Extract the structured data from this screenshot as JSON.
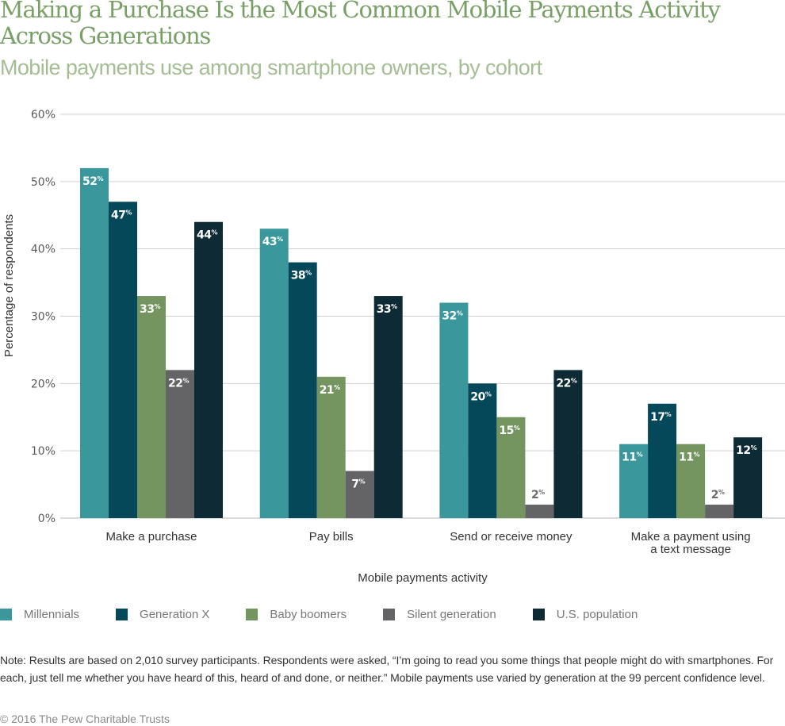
{
  "header": {
    "title": "Making a Purchase Is the Most Common Mobile Payments Activity Across Generations",
    "subtitle": "Mobile payments use among smartphone owners, by cohort"
  },
  "chart_data": {
    "type": "bar",
    "title": "Making a Purchase Is the Most Common Mobile Payments Activity Across Generations",
    "subtitle": "Mobile payments use among smartphone owners, by cohort",
    "xlabel": "Mobile payments activity",
    "ylabel": "Percentage of respondents",
    "ylim": [
      0,
      60
    ],
    "yticks": [
      0,
      10,
      20,
      30,
      40,
      50,
      60
    ],
    "ytick_labels": [
      "0%",
      "10%",
      "20%",
      "30%",
      "40%",
      "50%",
      "60%"
    ],
    "grid": true,
    "legend_position": "bottom",
    "categories": [
      "Make a purchase",
      "Pay bills",
      "Send or receive money",
      "Make a payment using a text message"
    ],
    "series": [
      {
        "name": "Millennials",
        "color": "#3a979c",
        "values": [
          52,
          43,
          32,
          11
        ]
      },
      {
        "name": "Generation X",
        "color": "#05485a",
        "values": [
          47,
          38,
          20,
          17
        ]
      },
      {
        "name": "Baby boomers",
        "color": "#74955f",
        "values": [
          33,
          21,
          15,
          11
        ]
      },
      {
        "name": "Silent generation",
        "color": "#646466",
        "values": [
          22,
          7,
          2,
          2
        ]
      },
      {
        "name": "U.S. population",
        "color": "#0e2b35",
        "values": [
          44,
          33,
          22,
          12
        ]
      }
    ],
    "value_suffix": "%"
  },
  "footer": {
    "note": "Note: Results are based on 2,010 survey participants. Respondents were asked, “I’m going to read you some things that people might do with smartphones. For each, just tell me whether you have heard of this, heard of and done, or neither.” Mobile payments use varied by generation at the 99 percent confidence level.",
    "credit": "© 2016 The Pew Charitable Trusts"
  }
}
